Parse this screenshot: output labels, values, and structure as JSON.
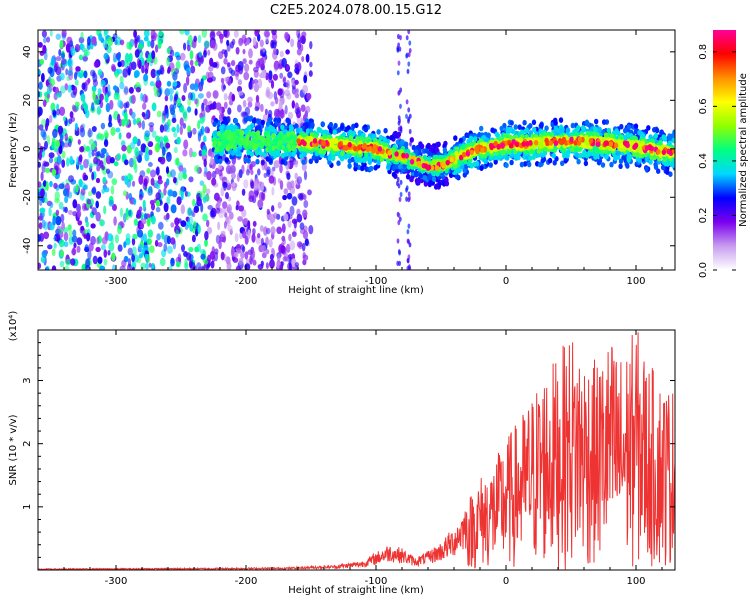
{
  "title": "C2E5.2024.078.00.15.G12",
  "chart_data": [
    {
      "type": "heatmap",
      "xlabel": "Height of straight line (km)",
      "ylabel": "Frequency (Hz)",
      "xlim": [
        -360,
        130
      ],
      "ylim": [
        -50,
        49
      ],
      "x_ticks": [
        -300,
        -200,
        -100,
        0,
        100
      ],
      "x_tick_labels": [
        "-300",
        "-200",
        "-100",
        "0",
        "100"
      ],
      "y_ticks": [
        -40,
        -20,
        0,
        20,
        40
      ],
      "y_tick_labels": [
        "-40",
        "-20",
        "0",
        "20",
        "40"
      ],
      "noise_region_x": [
        -360,
        -160
      ],
      "ridge": {
        "x": [
          -225,
          -200,
          -180,
          -160,
          -140,
          -120,
          -100,
          -90,
          -80,
          -70,
          -60,
          -50,
          -40,
          -30,
          -20,
          0,
          20,
          40,
          60,
          80,
          100,
          120,
          130
        ],
        "frequency": [
          3,
          4,
          3,
          3,
          2,
          1,
          0,
          -2,
          -3,
          -5,
          -7,
          -7,
          -4,
          -2,
          0,
          2,
          2,
          3,
          3,
          2,
          1,
          -1,
          -2
        ]
      },
      "colorbar": {
        "label": "Normalized spectral amplitude",
        "range": [
          0.0,
          0.88
        ],
        "ticks": [
          0.0,
          0.2,
          0.4,
          0.6,
          0.8
        ],
        "tick_labels": [
          "0.0",
          "0.2",
          "0.4",
          "0.6",
          "0.8"
        ],
        "colors": [
          "#ffffff",
          "#c89cf0",
          "#7a00ee",
          "#0000ff",
          "#00d8ff",
          "#00ff80",
          "#90ff00",
          "#ffff00",
          "#ff9000",
          "#ff0000",
          "#ff0099"
        ]
      }
    },
    {
      "type": "line",
      "xlabel": "Height of straight line (km)",
      "ylabel": "SNR (10 * v/v)",
      "scale_note": "(x10⁴)",
      "xlim": [
        -360,
        130
      ],
      "ylim": [
        0,
        3.8
      ],
      "x_ticks": [
        -300,
        -200,
        -100,
        0,
        100
      ],
      "x_tick_labels": [
        "-300",
        "-200",
        "-100",
        "0",
        "100"
      ],
      "y_ticks": [
        1,
        2,
        3
      ],
      "y_tick_labels": [
        "1",
        "2",
        "3"
      ],
      "color": "#ee3333",
      "envelope": {
        "x": [
          -360,
          -250,
          -170,
          -130,
          -110,
          -100,
          -90,
          -80,
          -70,
          -60,
          -50,
          -40,
          -30,
          -20,
          -10,
          0,
          10,
          20,
          30,
          40,
          50,
          60,
          70,
          80,
          90,
          100,
          110,
          120,
          130
        ],
        "snr": [
          0.02,
          0.03,
          0.04,
          0.08,
          0.15,
          0.28,
          0.42,
          0.35,
          0.2,
          0.3,
          0.45,
          0.7,
          1.1,
          1.5,
          1.7,
          2.1,
          2.4,
          2.8,
          3.2,
          3.4,
          3.8,
          3.5,
          3.3,
          3.7,
          3.4,
          3.9,
          3.3,
          3.0,
          2.9
        ]
      }
    }
  ]
}
